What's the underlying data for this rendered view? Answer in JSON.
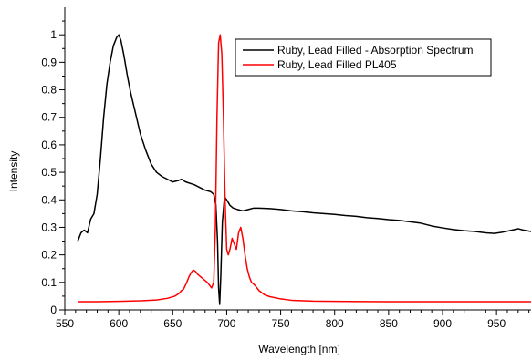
{
  "chart_data": {
    "type": "line",
    "title": "",
    "xlabel": "Wavelength [nm]",
    "ylabel": "Intensity",
    "xlim": [
      550,
      982
    ],
    "ylim": [
      0,
      1.1
    ],
    "x_ticks": [
      550,
      600,
      650,
      700,
      750,
      800,
      850,
      900,
      950
    ],
    "y_ticks": [
      0,
      0.1,
      0.2,
      0.3,
      0.4,
      0.5,
      0.6,
      0.7,
      0.8,
      0.9,
      1
    ],
    "x_tick_labels": [
      "550",
      "600",
      "650",
      "700",
      "750",
      "800",
      "850",
      "900",
      "950"
    ],
    "y_tick_labels": [
      "0",
      "0.1",
      "0.2",
      "0.3",
      "0.4",
      "0.5",
      "0.6",
      "0.7",
      "0.8",
      "0.9",
      "1"
    ],
    "grid": false,
    "legend_position": "top-right",
    "series": [
      {
        "name": "Ruby, Lead Filled - Absorption Spectrum",
        "color": "#000000",
        "points": [
          [
            562,
            0.25
          ],
          [
            565,
            0.28
          ],
          [
            568,
            0.29
          ],
          [
            571,
            0.28
          ],
          [
            574,
            0.33
          ],
          [
            577,
            0.35
          ],
          [
            580,
            0.42
          ],
          [
            583,
            0.55
          ],
          [
            586,
            0.7
          ],
          [
            589,
            0.82
          ],
          [
            592,
            0.9
          ],
          [
            595,
            0.96
          ],
          [
            598,
            0.99
          ],
          [
            600,
            1.0
          ],
          [
            602,
            0.98
          ],
          [
            605,
            0.92
          ],
          [
            608,
            0.85
          ],
          [
            611,
            0.79
          ],
          [
            614,
            0.74
          ],
          [
            617,
            0.69
          ],
          [
            620,
            0.64
          ],
          [
            625,
            0.58
          ],
          [
            630,
            0.53
          ],
          [
            635,
            0.5
          ],
          [
            640,
            0.485
          ],
          [
            645,
            0.475
          ],
          [
            650,
            0.465
          ],
          [
            655,
            0.47
          ],
          [
            658,
            0.475
          ],
          [
            662,
            0.465
          ],
          [
            670,
            0.455
          ],
          [
            675,
            0.445
          ],
          [
            680,
            0.435
          ],
          [
            685,
            0.43
          ],
          [
            688,
            0.42
          ],
          [
            690,
            0.38
          ],
          [
            691.5,
            0.25
          ],
          [
            692.5,
            0.08
          ],
          [
            693.5,
            0.02
          ],
          [
            694.5,
            0.12
          ],
          [
            696,
            0.32
          ],
          [
            698,
            0.41
          ],
          [
            700,
            0.4
          ],
          [
            703,
            0.38
          ],
          [
            706,
            0.37
          ],
          [
            710,
            0.365
          ],
          [
            715,
            0.36
          ],
          [
            720,
            0.365
          ],
          [
            725,
            0.37
          ],
          [
            730,
            0.37
          ],
          [
            740,
            0.368
          ],
          [
            750,
            0.365
          ],
          [
            760,
            0.36
          ],
          [
            770,
            0.357
          ],
          [
            780,
            0.353
          ],
          [
            790,
            0.35
          ],
          [
            800,
            0.347
          ],
          [
            810,
            0.343
          ],
          [
            820,
            0.34
          ],
          [
            830,
            0.335
          ],
          [
            840,
            0.332
          ],
          [
            850,
            0.328
          ],
          [
            860,
            0.325
          ],
          [
            870,
            0.32
          ],
          [
            880,
            0.315
          ],
          [
            890,
            0.305
          ],
          [
            900,
            0.298
          ],
          [
            910,
            0.292
          ],
          [
            920,
            0.288
          ],
          [
            930,
            0.285
          ],
          [
            940,
            0.28
          ],
          [
            948,
            0.278
          ],
          [
            955,
            0.282
          ],
          [
            962,
            0.288
          ],
          [
            970,
            0.295
          ],
          [
            975,
            0.29
          ],
          [
            982,
            0.285
          ]
        ]
      },
      {
        "name": "Ruby, Lead Filled PL405",
        "color": "#ff0000",
        "points": [
          [
            562,
            0.03
          ],
          [
            580,
            0.03
          ],
          [
            600,
            0.031
          ],
          [
            620,
            0.033
          ],
          [
            635,
            0.036
          ],
          [
            645,
            0.042
          ],
          [
            652,
            0.05
          ],
          [
            656,
            0.06
          ],
          [
            658,
            0.07
          ],
          [
            660,
            0.075
          ],
          [
            663,
            0.1
          ],
          [
            665,
            0.12
          ],
          [
            667,
            0.135
          ],
          [
            669,
            0.145
          ],
          [
            671,
            0.14
          ],
          [
            673,
            0.13
          ],
          [
            676,
            0.12
          ],
          [
            679,
            0.11
          ],
          [
            682,
            0.1
          ],
          [
            684,
            0.09
          ],
          [
            686,
            0.08
          ],
          [
            688,
            0.1
          ],
          [
            689.5,
            0.3
          ],
          [
            691,
            0.7
          ],
          [
            692.5,
            0.97
          ],
          [
            694,
            1.0
          ],
          [
            695.5,
            0.93
          ],
          [
            697,
            0.7
          ],
          [
            698.5,
            0.4
          ],
          [
            700,
            0.22
          ],
          [
            701.5,
            0.2
          ],
          [
            703,
            0.22
          ],
          [
            705,
            0.26
          ],
          [
            707,
            0.24
          ],
          [
            709,
            0.22
          ],
          [
            711,
            0.28
          ],
          [
            713,
            0.3
          ],
          [
            715,
            0.26
          ],
          [
            717,
            0.2
          ],
          [
            719,
            0.15
          ],
          [
            721,
            0.12
          ],
          [
            723,
            0.1
          ],
          [
            726,
            0.09
          ],
          [
            730,
            0.07
          ],
          [
            735,
            0.055
          ],
          [
            740,
            0.048
          ],
          [
            750,
            0.04
          ],
          [
            760,
            0.035
          ],
          [
            780,
            0.032
          ],
          [
            800,
            0.031
          ],
          [
            850,
            0.03
          ],
          [
            900,
            0.03
          ],
          [
            950,
            0.03
          ],
          [
            982,
            0.03
          ]
        ]
      }
    ]
  }
}
